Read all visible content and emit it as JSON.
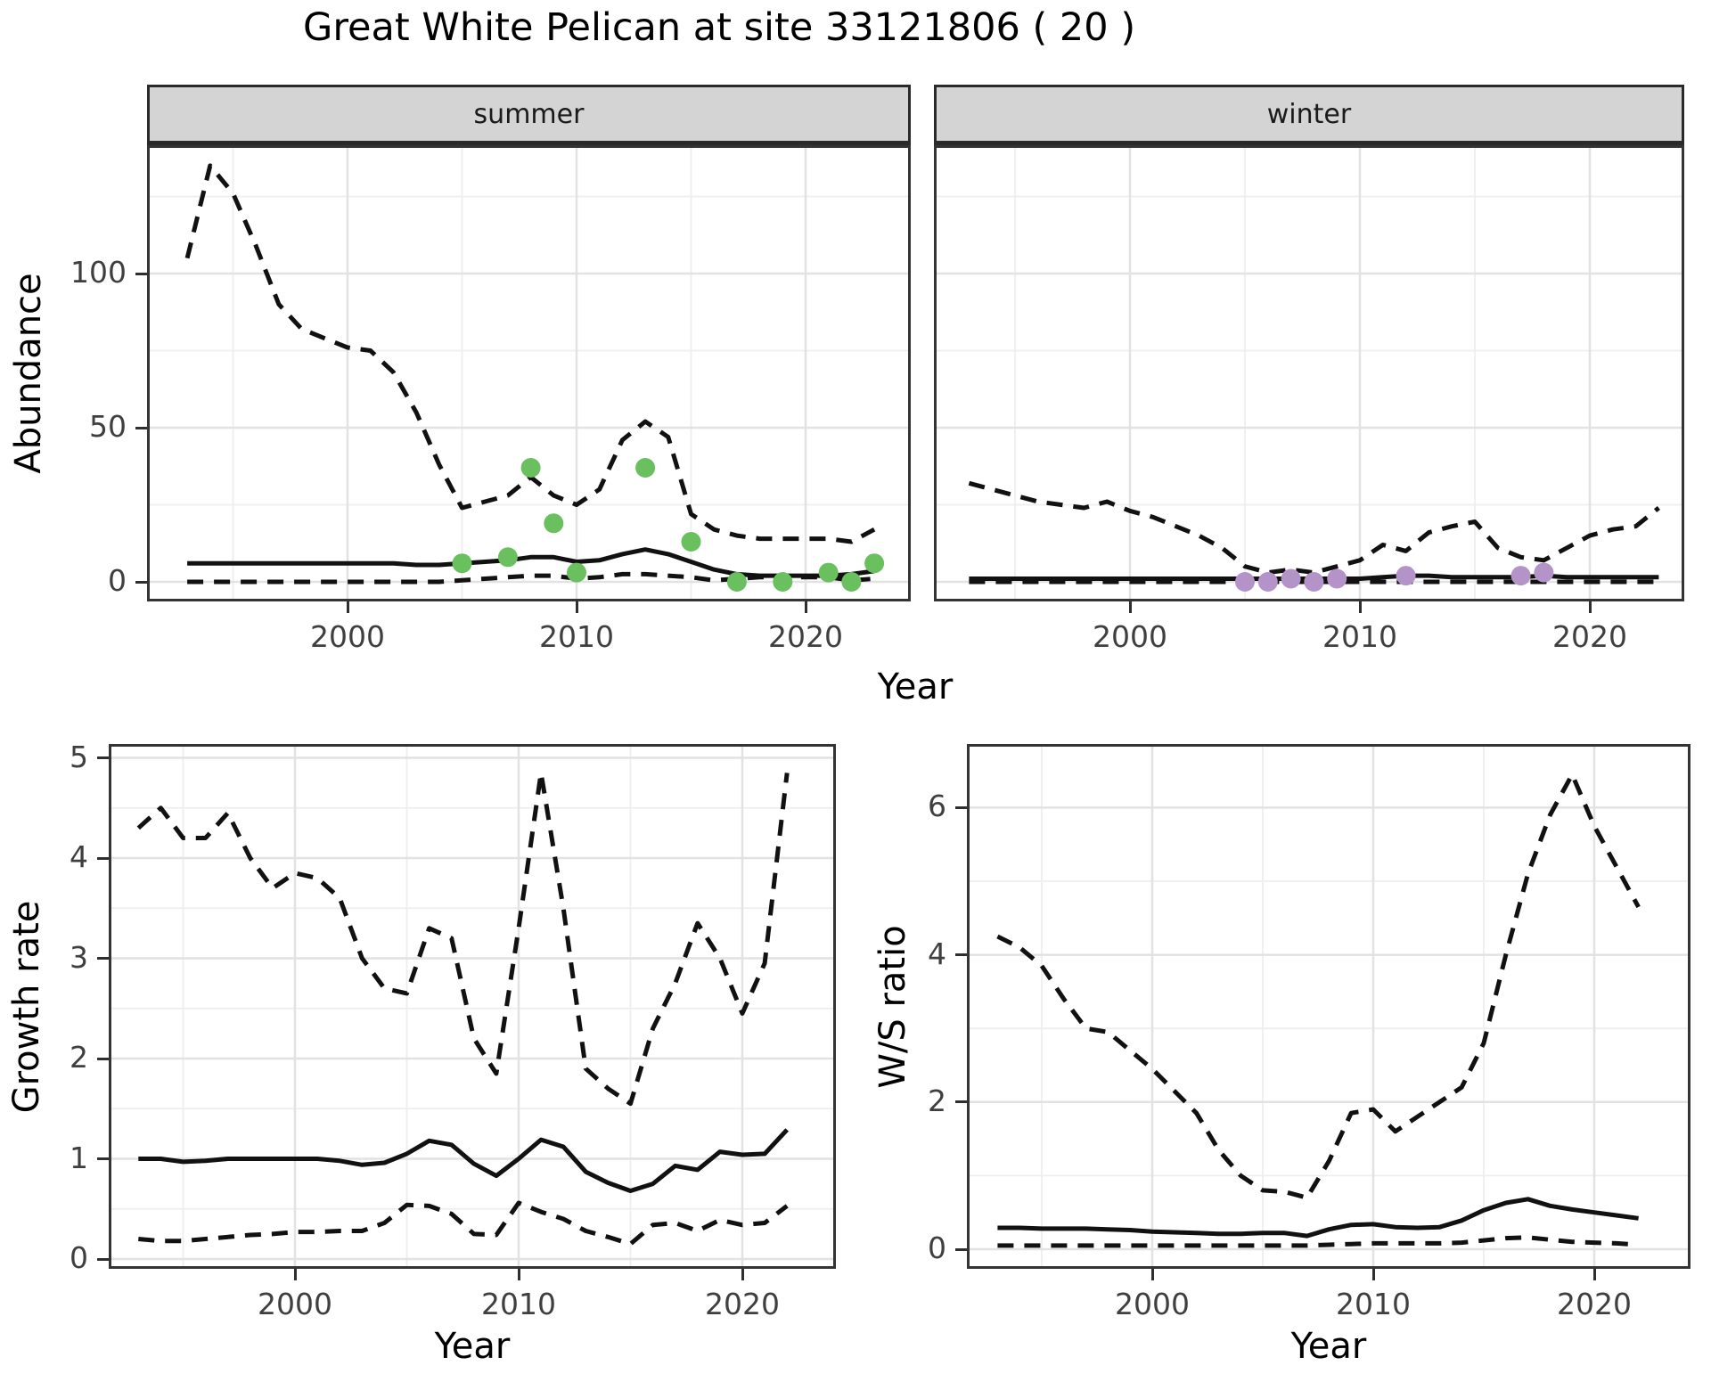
{
  "title": "Great White Pelican at site 33121806 ( 20 )",
  "colors": {
    "summer_point": "#6abf5e",
    "winter_point": "#b493c8",
    "line": "#111111",
    "strip_bg": "#d4d4d4",
    "grid_major": "#e2e2e2",
    "grid_minor": "#eeeeee",
    "panel_border": "#343434"
  },
  "chart_data": [
    {
      "id": "abundance_summer",
      "type": "line",
      "facet": "summer",
      "ylabel": "Abundance",
      "xlabel": "Year",
      "xlim": [
        1991.5,
        2024.6
      ],
      "ylim": [
        -6.4,
        141.6
      ],
      "x_ticks": [
        2000,
        2010,
        2020
      ],
      "y_ticks": [
        0,
        50,
        100
      ],
      "x_minor": [
        1995,
        2005,
        2015
      ],
      "y_minor": [
        25,
        75,
        125
      ],
      "grid": true,
      "legend": "none",
      "x": [
        1993,
        1994,
        1995,
        1996,
        1997,
        1998,
        1999,
        2000,
        2001,
        2002,
        2003,
        2004,
        2005,
        2006,
        2007,
        2008,
        2009,
        2010,
        2011,
        2012,
        2013,
        2014,
        2015,
        2016,
        2017,
        2018,
        2019,
        2020,
        2021,
        2022,
        2023
      ],
      "series": [
        {
          "name": "upper_ci",
          "style": "dashed",
          "values": [
            105,
            135,
            126,
            109,
            90,
            82,
            79,
            76,
            75,
            68,
            55,
            38,
            24,
            26,
            28,
            34,
            28,
            25,
            30,
            46,
            52,
            47,
            22,
            17,
            15,
            14,
            14,
            14,
            14,
            13,
            17
          ]
        },
        {
          "name": "median",
          "style": "solid",
          "values": [
            6,
            6,
            6,
            6,
            6,
            6,
            6,
            6,
            6,
            6,
            5.5,
            5.5,
            6,
            6.5,
            7,
            8,
            8,
            6.5,
            7,
            9,
            10.5,
            9,
            6.5,
            4,
            2.5,
            2,
            2,
            2,
            2,
            2.5,
            3.5
          ]
        },
        {
          "name": "lower_ci",
          "style": "dashed",
          "values": [
            0,
            0,
            0,
            0,
            0,
            0,
            0,
            0,
            0,
            0,
            0,
            0,
            0.5,
            1,
            1.5,
            2,
            2,
            1,
            1.5,
            2.5,
            2.5,
            2,
            1.5,
            0.5,
            1,
            1.5,
            1.5,
            1.5,
            1.5,
            0.5,
            1
          ]
        }
      ],
      "points": [
        [
          2005,
          6
        ],
        [
          2007,
          8
        ],
        [
          2008,
          37
        ],
        [
          2009,
          19
        ],
        [
          2010,
          3
        ],
        [
          2013,
          37
        ],
        [
          2015,
          13
        ],
        [
          2017,
          0
        ],
        [
          2019,
          0
        ],
        [
          2021,
          3
        ],
        [
          2022,
          0
        ],
        [
          2023,
          6
        ]
      ]
    },
    {
      "id": "abundance_winter",
      "type": "line",
      "facet": "winter",
      "ylabel": "Abundance",
      "xlabel": "Year",
      "xlim": [
        1991.5,
        2024.6
      ],
      "ylim": [
        -6.4,
        141.6
      ],
      "x_ticks": [
        2000,
        2010,
        2020
      ],
      "y_ticks": [
        0,
        50,
        100
      ],
      "x_minor": [
        1995,
        2005,
        2015
      ],
      "y_minor": [
        25,
        75,
        125
      ],
      "grid": true,
      "legend": "none",
      "x": [
        1993,
        1994,
        1995,
        1996,
        1997,
        1998,
        1999,
        2000,
        2001,
        2002,
        2003,
        2004,
        2005,
        2006,
        2007,
        2008,
        2009,
        2010,
        2011,
        2012,
        2013,
        2014,
        2015,
        2016,
        2017,
        2018,
        2019,
        2020,
        2021,
        2022,
        2023
      ],
      "series": [
        {
          "name": "upper_ci",
          "style": "dashed",
          "values": [
            32,
            30,
            28,
            26,
            25,
            24,
            26,
            23,
            21,
            18,
            15,
            11,
            5,
            3,
            4,
            3,
            5,
            7,
            12,
            10,
            16,
            18,
            19.5,
            11,
            8,
            7,
            11,
            15,
            17,
            18,
            24
          ]
        },
        {
          "name": "median",
          "style": "solid",
          "values": [
            1,
            1,
            1,
            1,
            1,
            1,
            1,
            1,
            1,
            1,
            1,
            1,
            1,
            1,
            1,
            1,
            1,
            1,
            1.5,
            2,
            2,
            1.5,
            1.5,
            1.5,
            1.5,
            2,
            1.5,
            1.5,
            1.5,
            1.5,
            1.5
          ]
        },
        {
          "name": "lower_ci",
          "style": "dashed",
          "values": [
            0,
            0,
            0,
            0,
            0,
            0,
            0,
            0,
            0,
            0,
            0,
            0,
            0,
            0,
            0,
            0,
            0,
            0,
            0,
            0,
            0,
            0,
            0,
            0,
            0,
            0,
            0,
            0,
            0,
            0,
            0
          ]
        }
      ],
      "points": [
        [
          2005,
          0
        ],
        [
          2006,
          0
        ],
        [
          2007,
          1
        ],
        [
          2008,
          0
        ],
        [
          2009,
          1
        ],
        [
          2012,
          2
        ],
        [
          2017,
          2
        ],
        [
          2018,
          3
        ]
      ]
    },
    {
      "id": "growth_rate",
      "type": "line",
      "facet": null,
      "ylabel": "Growth rate",
      "xlabel": "Year",
      "xlim": [
        1991.7,
        2024.2
      ],
      "ylim": [
        -0.1,
        5.14
      ],
      "x_ticks": [
        2000,
        2010,
        2020
      ],
      "y_ticks": [
        0,
        1,
        2,
        3,
        4,
        5
      ],
      "x_minor": [
        1995,
        2005,
        2015
      ],
      "y_minor": [
        0.5,
        1.5,
        2.5,
        3.5,
        4.5
      ],
      "grid": true,
      "legend": "none",
      "x": [
        1993,
        1994,
        1995,
        1996,
        1997,
        1998,
        1999,
        2000,
        2001,
        2002,
        2003,
        2004,
        2005,
        2006,
        2007,
        2008,
        2009,
        2010,
        2011,
        2012,
        2013,
        2014,
        2015,
        2016,
        2017,
        2018,
        2019,
        2020,
        2021,
        2022
      ],
      "series": [
        {
          "name": "upper_ci",
          "style": "dashed",
          "values": [
            4.3,
            4.5,
            4.2,
            4.2,
            4.45,
            4.0,
            3.7,
            3.85,
            3.8,
            3.6,
            3.0,
            2.7,
            2.65,
            3.3,
            3.2,
            2.2,
            1.85,
            3.3,
            4.85,
            3.5,
            1.9,
            1.7,
            1.55,
            2.3,
            2.75,
            3.35,
            3.0,
            2.45,
            2.95,
            4.85
          ]
        },
        {
          "name": "median",
          "style": "solid",
          "values": [
            1.0,
            1.0,
            0.97,
            0.98,
            1.0,
            1.0,
            1.0,
            1.0,
            1.0,
            0.98,
            0.94,
            0.96,
            1.05,
            1.18,
            1.14,
            0.95,
            0.83,
            1.0,
            1.19,
            1.12,
            0.87,
            0.76,
            0.68,
            0.75,
            0.93,
            0.89,
            1.07,
            1.04,
            1.05,
            1.29
          ]
        },
        {
          "name": "lower_ci",
          "style": "dashed",
          "values": [
            0.2,
            0.18,
            0.18,
            0.2,
            0.22,
            0.24,
            0.25,
            0.27,
            0.27,
            0.28,
            0.28,
            0.36,
            0.54,
            0.53,
            0.45,
            0.25,
            0.24,
            0.56,
            0.47,
            0.4,
            0.28,
            0.22,
            0.15,
            0.34,
            0.36,
            0.28,
            0.39,
            0.34,
            0.36,
            0.53
          ]
        }
      ],
      "points": []
    },
    {
      "id": "ws_ratio",
      "type": "line",
      "facet": null,
      "ylabel": "W/S ratio",
      "xlabel": "Year",
      "xlim": [
        1991.6,
        2024.4
      ],
      "ylim": [
        -0.27,
        6.87
      ],
      "x_ticks": [
        2000,
        2010,
        2020
      ],
      "y_ticks": [
        0,
        2,
        4,
        6
      ],
      "x_minor": [
        1995,
        2005,
        2015
      ],
      "y_minor": [
        1,
        3,
        5
      ],
      "grid": true,
      "legend": "none",
      "x": [
        1993,
        1994,
        1995,
        1996,
        1997,
        1998,
        1999,
        2000,
        2001,
        2002,
        2003,
        2004,
        2005,
        2006,
        2007,
        2008,
        2009,
        2010,
        2011,
        2012,
        2013,
        2014,
        2015,
        2016,
        2017,
        2018,
        2019,
        2020,
        2021,
        2022
      ],
      "series": [
        {
          "name": "upper_ci",
          "style": "dashed",
          "values": [
            4.25,
            4.1,
            3.85,
            3.4,
            3.0,
            2.95,
            2.7,
            2.45,
            2.15,
            1.85,
            1.35,
            1.0,
            0.8,
            0.78,
            0.7,
            1.2,
            1.85,
            1.9,
            1.6,
            1.8,
            2.0,
            2.2,
            2.8,
            4.0,
            5.1,
            5.9,
            6.45,
            5.75,
            5.2,
            4.65
          ]
        },
        {
          "name": "median",
          "style": "solid",
          "values": [
            0.29,
            0.29,
            0.28,
            0.28,
            0.28,
            0.27,
            0.26,
            0.24,
            0.23,
            0.22,
            0.21,
            0.21,
            0.22,
            0.22,
            0.18,
            0.27,
            0.33,
            0.34,
            0.3,
            0.29,
            0.3,
            0.39,
            0.53,
            0.63,
            0.68,
            0.59,
            0.54,
            0.5,
            0.46,
            0.42
          ]
        },
        {
          "name": "lower_ci",
          "style": "dashed",
          "values": [
            0.05,
            0.05,
            0.05,
            0.05,
            0.05,
            0.05,
            0.05,
            0.05,
            0.05,
            0.05,
            0.05,
            0.05,
            0.05,
            0.05,
            0.05,
            0.06,
            0.07,
            0.08,
            0.08,
            0.08,
            0.08,
            0.09,
            0.12,
            0.15,
            0.16,
            0.13,
            0.1,
            0.09,
            0.08,
            0.06
          ]
        }
      ],
      "points": []
    }
  ]
}
